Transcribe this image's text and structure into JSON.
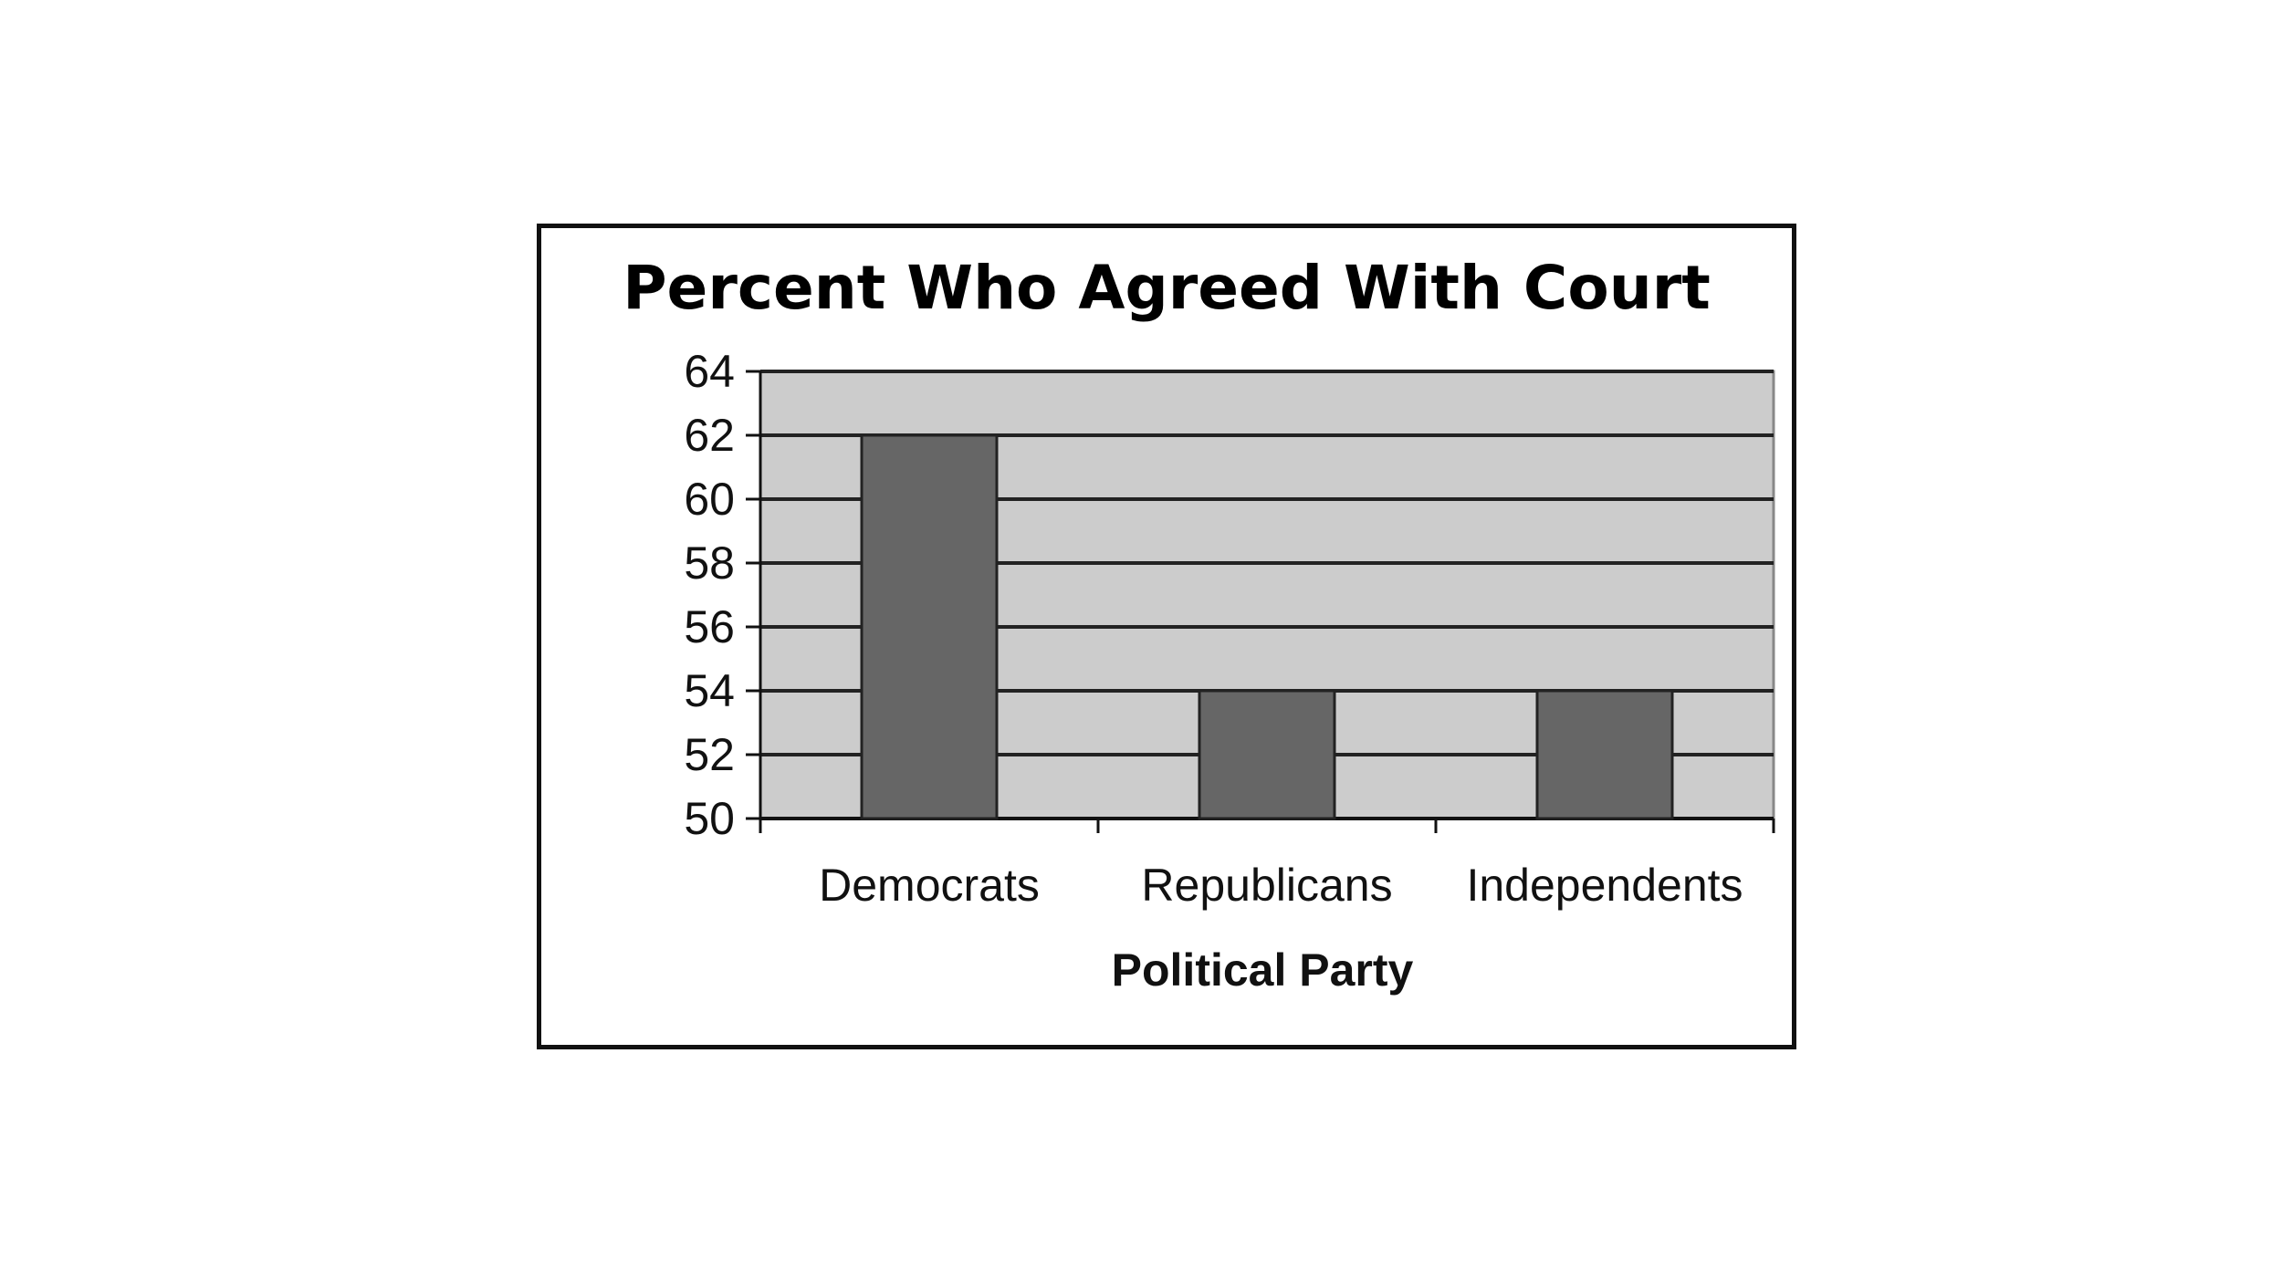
{
  "chart_data": {
    "type": "bar",
    "title": "Percent Who Agreed With Court",
    "xlabel": "Political Party",
    "ylabel": "",
    "categories": [
      "Democrats",
      "Republicans",
      "Independents"
    ],
    "values": [
      62,
      54,
      54
    ],
    "ylim": [
      50,
      64
    ],
    "yticks": [
      "50",
      "52",
      "54",
      "56",
      "58",
      "60",
      "62",
      "64"
    ],
    "grid": true,
    "legend": "none",
    "colors": {
      "plot_background": "#cccccc",
      "bar_fill": "#666666",
      "bar_stroke": "#222222",
      "gridline": "#222222"
    }
  }
}
